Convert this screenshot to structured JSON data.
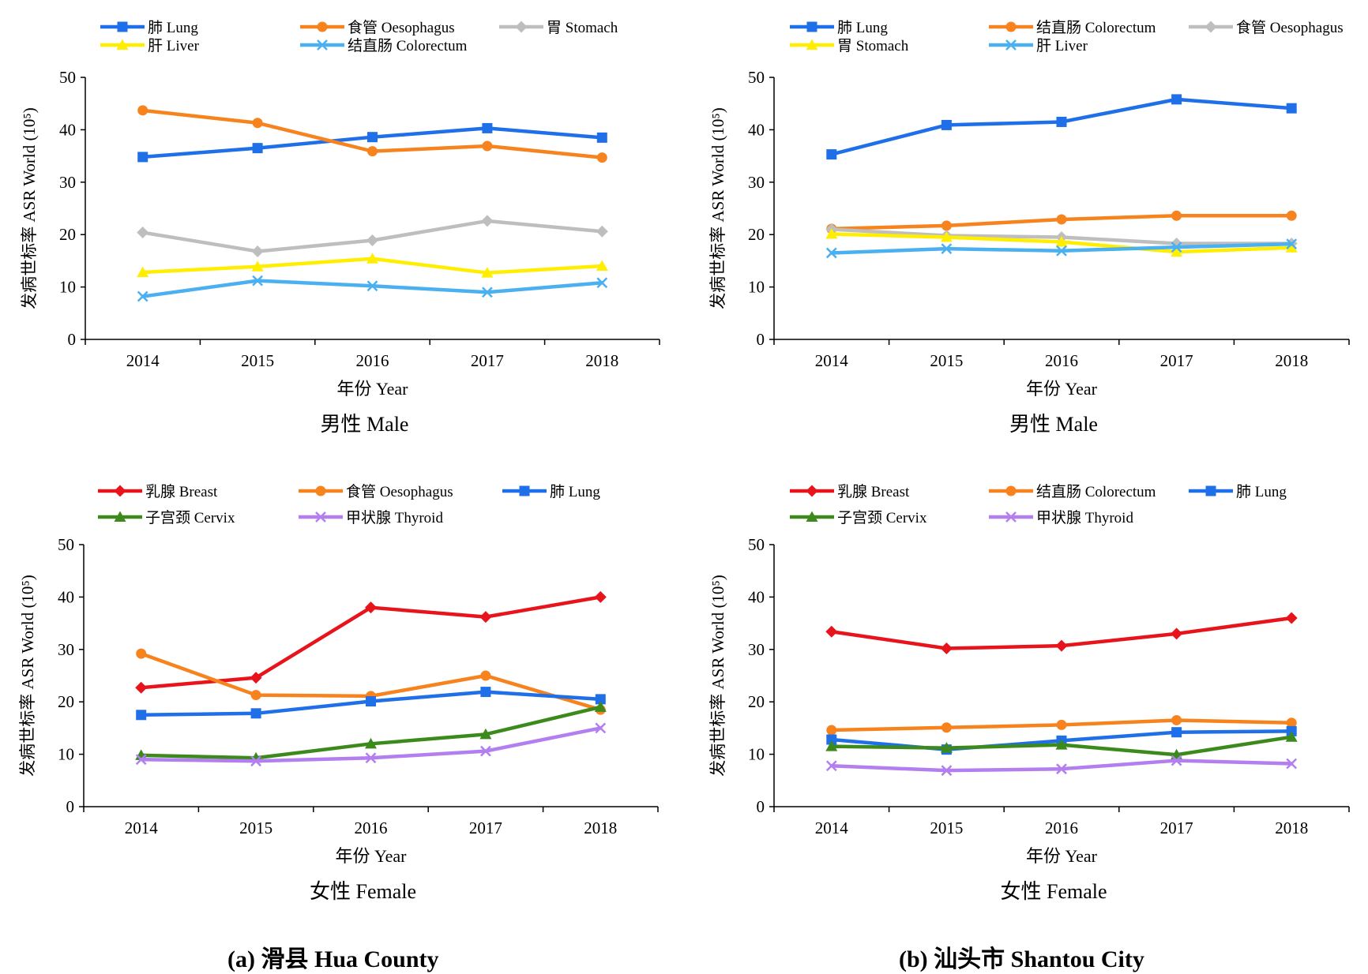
{
  "figure": {
    "caption_a": "(a)  滑县 Hua County",
    "caption_b": "(b)  汕头市 Shantou City"
  },
  "chart_data": [
    {
      "type": "line",
      "panel": "a-male",
      "title": "男性 Male",
      "xlabel": "年份 Year",
      "ylabel": "发病世标率 ASR World (10⁵)",
      "categories": [
        "2014",
        "2015",
        "2016",
        "2017",
        "2018"
      ],
      "ylim": [
        0,
        50
      ],
      "yticks": [
        0,
        10,
        20,
        30,
        40,
        50
      ],
      "grid": false,
      "legend_position": "top",
      "series": [
        {
          "name": "肺 Lung",
          "color": "#1F6FE8",
          "marker": "square",
          "values": [
            34.8,
            36.5,
            38.6,
            40.3,
            38.5
          ]
        },
        {
          "name": "食管 Oesophagus",
          "color": "#F7831E",
          "marker": "circle",
          "values": [
            43.7,
            41.3,
            35.9,
            36.9,
            34.7
          ]
        },
        {
          "name": "胃 Stomach",
          "color": "#BEBEBE",
          "marker": "diamond",
          "values": [
            20.4,
            16.8,
            18.9,
            22.6,
            20.6
          ]
        },
        {
          "name": "肝 Liver",
          "color": "#FFEE00",
          "marker": "triangle",
          "values": [
            12.8,
            13.9,
            15.4,
            12.7,
            14.0
          ]
        },
        {
          "name": "结直肠 Colorectum",
          "color": "#4AB0F0",
          "marker": "x",
          "values": [
            8.2,
            11.2,
            10.2,
            9.0,
            10.8
          ]
        }
      ]
    },
    {
      "type": "line",
      "panel": "b-male",
      "title": "男性 Male",
      "xlabel": "年份 Year",
      "ylabel": "发病世标率 ASR World (10⁵)",
      "categories": [
        "2014",
        "2015",
        "2016",
        "2017",
        "2018"
      ],
      "ylim": [
        0,
        50
      ],
      "yticks": [
        0,
        10,
        20,
        30,
        40,
        50
      ],
      "grid": false,
      "legend_position": "top",
      "series": [
        {
          "name": "肺 Lung",
          "color": "#1F6FE8",
          "marker": "square",
          "values": [
            35.3,
            40.9,
            41.5,
            45.8,
            44.1
          ]
        },
        {
          "name": "结直肠 Colorectum",
          "color": "#F7831E",
          "marker": "circle",
          "values": [
            21.1,
            21.7,
            22.9,
            23.6,
            23.6
          ]
        },
        {
          "name": "食管 Oesophagus",
          "color": "#BEBEBE",
          "marker": "diamond",
          "values": [
            21.0,
            19.8,
            19.5,
            18.3,
            18.3
          ]
        },
        {
          "name": "胃 Stomach",
          "color": "#FFEE00",
          "marker": "triangle",
          "values": [
            20.1,
            19.5,
            18.6,
            16.7,
            17.5
          ]
        },
        {
          "name": "肝 Liver",
          "color": "#4AB0F0",
          "marker": "x",
          "values": [
            16.5,
            17.3,
            16.9,
            17.6,
            18.2
          ]
        }
      ]
    },
    {
      "type": "line",
      "panel": "a-female",
      "title": "女性 Female",
      "xlabel": "年份 Year",
      "ylabel": "发病世标率 ASR World (10⁵)",
      "categories": [
        "2014",
        "2015",
        "2016",
        "2017",
        "2018"
      ],
      "ylim": [
        0,
        50
      ],
      "yticks": [
        0,
        10,
        20,
        30,
        40,
        50
      ],
      "grid": false,
      "legend_position": "top",
      "series": [
        {
          "name": "乳腺 Breast",
          "color": "#E8141B",
          "marker": "diamond",
          "values": [
            22.7,
            24.6,
            38.0,
            36.2,
            40.0
          ]
        },
        {
          "name": "食管 Oesophagus",
          "color": "#F7831E",
          "marker": "circle",
          "values": [
            29.2,
            21.3,
            21.1,
            25.0,
            18.5
          ]
        },
        {
          "name": "肺 Lung",
          "color": "#1F6FE8",
          "marker": "square",
          "values": [
            17.5,
            17.8,
            20.1,
            21.9,
            20.5
          ]
        },
        {
          "name": "子宫颈 Cervix",
          "color": "#3C8A1C",
          "marker": "triangle",
          "values": [
            9.8,
            9.3,
            12.0,
            13.8,
            19.0
          ]
        },
        {
          "name": "甲状腺 Thyroid",
          "color": "#B27EF0",
          "marker": "x",
          "values": [
            9.0,
            8.7,
            9.3,
            10.6,
            15.0
          ]
        }
      ]
    },
    {
      "type": "line",
      "panel": "b-female",
      "title": "女性 Female",
      "xlabel": "年份 Year",
      "ylabel": "发病世标率 ASR World (10⁵)",
      "categories": [
        "2014",
        "2015",
        "2016",
        "2017",
        "2018"
      ],
      "ylim": [
        0,
        50
      ],
      "yticks": [
        0,
        10,
        20,
        30,
        40,
        50
      ],
      "grid": false,
      "legend_position": "top",
      "series": [
        {
          "name": "乳腺 Breast",
          "color": "#E8141B",
          "marker": "diamond",
          "values": [
            33.4,
            30.2,
            30.7,
            33.0,
            36.0
          ]
        },
        {
          "name": "结直肠 Colorectum",
          "color": "#F7831E",
          "marker": "circle",
          "values": [
            14.6,
            15.1,
            15.6,
            16.5,
            16.0
          ]
        },
        {
          "name": "肺 Lung",
          "color": "#1F6FE8",
          "marker": "square",
          "values": [
            12.8,
            10.9,
            12.6,
            14.2,
            14.4
          ]
        },
        {
          "name": "子宫颈 Cervix",
          "color": "#3C8A1C",
          "marker": "triangle",
          "values": [
            11.5,
            11.2,
            11.8,
            9.9,
            13.3
          ]
        },
        {
          "name": "甲状腺 Thyroid",
          "color": "#B27EF0",
          "marker": "x",
          "values": [
            7.8,
            6.9,
            7.2,
            8.8,
            8.2
          ]
        }
      ]
    }
  ]
}
